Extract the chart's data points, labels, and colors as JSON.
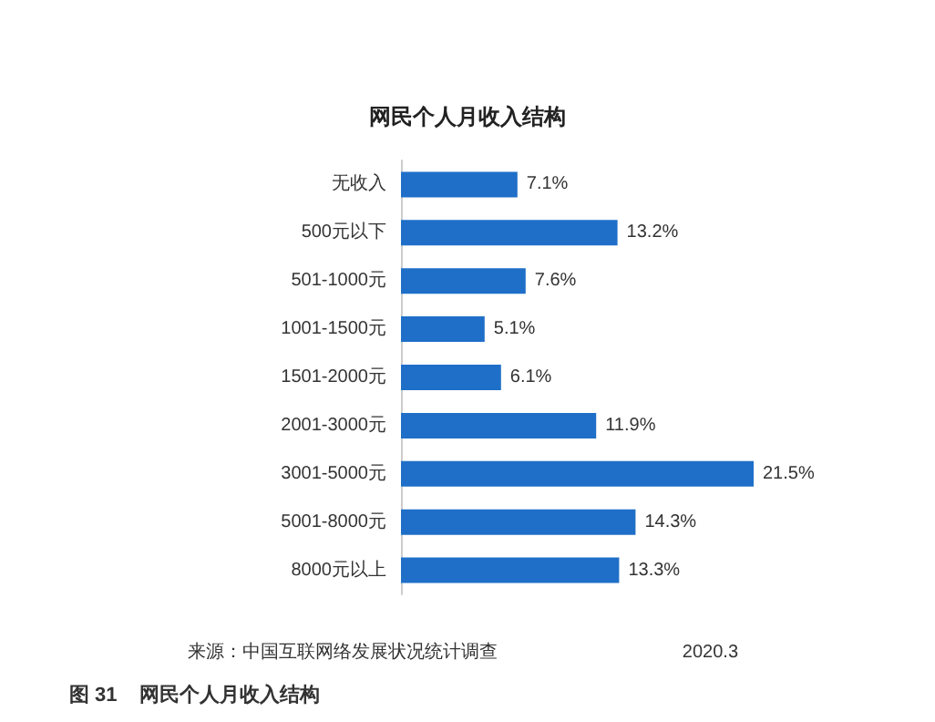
{
  "chart_data": {
    "type": "bar",
    "orientation": "horizontal",
    "title": "网民个人月收入结构",
    "categories": [
      "无收入",
      "500元以下",
      "501-1000元",
      "1001-1500元",
      "1501-2000元",
      "2001-3000元",
      "3001-5000元",
      "5001-8000元",
      "8000元以上"
    ],
    "values": [
      7.1,
      13.2,
      7.6,
      5.1,
      6.1,
      11.9,
      21.5,
      14.3,
      13.3
    ],
    "value_labels": [
      "7.1%",
      "13.2%",
      "7.6%",
      "5.1%",
      "6.1%",
      "11.9%",
      "21.5%",
      "14.3%",
      "13.3%"
    ],
    "color": "#1f6fc8",
    "annotations": [
      "来源：中国互联网络发展状况统计调查",
      "2020.3",
      "图 31    网民个人月收入结构"
    ]
  }
}
